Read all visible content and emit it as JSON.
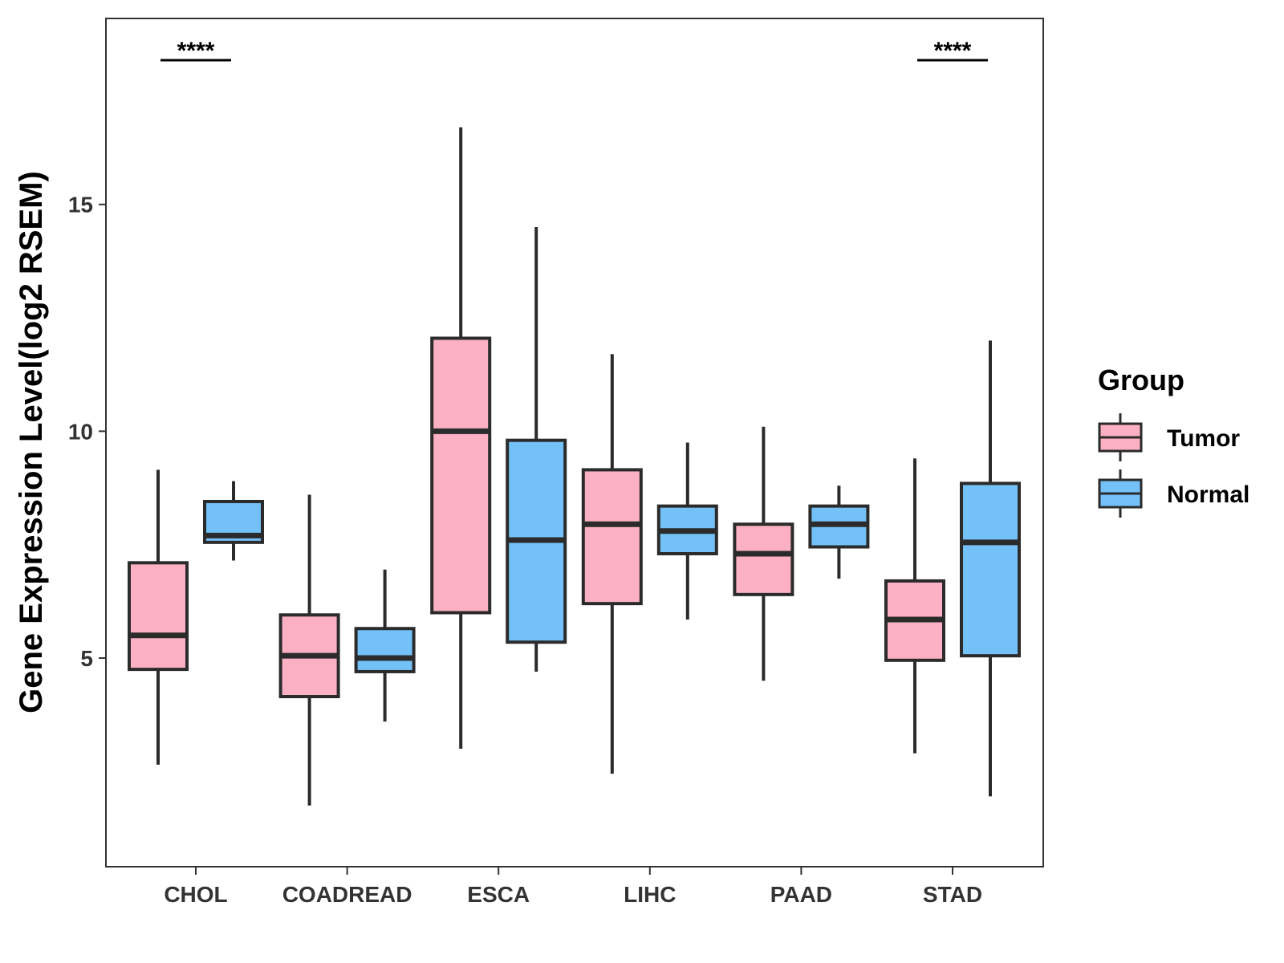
{
  "chart_data": {
    "type": "boxplot",
    "ylabel": "Gene Expression Level(log2 RSEM)",
    "xlabel": "",
    "ylim": [
      0.4,
      19.1
    ],
    "yticks": [
      5,
      10,
      15
    ],
    "ytick_labels": [
      "5",
      "10",
      "15"
    ],
    "categories": [
      "CHOL",
      "COADREAD",
      "ESCA",
      "LIHC",
      "PAAD",
      "STAD"
    ],
    "legend": {
      "title": "Group",
      "position": "right",
      "items": [
        {
          "label": "Tumor",
          "color": "#FBB1C3"
        },
        {
          "label": "Normal",
          "color": "#74C1F8"
        }
      ]
    },
    "series": [
      {
        "name": "Tumor",
        "color": "#FBB1C3",
        "boxes": [
          {
            "category": "CHOL",
            "min": 2.65,
            "q1": 4.75,
            "median": 5.5,
            "q3": 7.1,
            "max": 9.15
          },
          {
            "category": "COADREAD",
            "min": 1.75,
            "q1": 4.15,
            "median": 5.05,
            "q3": 5.95,
            "max": 8.6
          },
          {
            "category": "ESCA",
            "min": 3.0,
            "q1": 6.0,
            "median": 10.0,
            "q3": 12.05,
            "max": 16.7
          },
          {
            "category": "LIHC",
            "min": 2.45,
            "q1": 6.2,
            "median": 7.95,
            "q3": 9.15,
            "max": 11.7
          },
          {
            "category": "PAAD",
            "min": 4.5,
            "q1": 6.4,
            "median": 7.3,
            "q3": 7.95,
            "max": 10.1
          },
          {
            "category": "STAD",
            "min": 2.9,
            "q1": 4.95,
            "median": 5.85,
            "q3": 6.7,
            "max": 9.4
          }
        ]
      },
      {
        "name": "Normal",
        "color": "#74C1F8",
        "boxes": [
          {
            "category": "CHOL",
            "min": 7.15,
            "q1": 7.55,
            "median": 7.7,
            "q3": 8.45,
            "max": 8.9
          },
          {
            "category": "COADREAD",
            "min": 3.6,
            "q1": 4.7,
            "median": 5.0,
            "q3": 5.65,
            "max": 6.95
          },
          {
            "category": "ESCA",
            "min": 4.7,
            "q1": 5.35,
            "median": 7.6,
            "q3": 9.8,
            "max": 14.5
          },
          {
            "category": "LIHC",
            "min": 5.85,
            "q1": 7.3,
            "median": 7.8,
            "q3": 8.35,
            "max": 9.75
          },
          {
            "category": "PAAD",
            "min": 6.75,
            "q1": 7.45,
            "median": 7.95,
            "q3": 8.35,
            "max": 8.8
          },
          {
            "category": "STAD",
            "min": 1.95,
            "q1": 5.05,
            "median": 7.55,
            "q3": 8.85,
            "max": 12.0
          }
        ]
      }
    ],
    "significance": [
      {
        "category": "CHOL",
        "label": "****"
      },
      {
        "category": "STAD",
        "label": "****"
      }
    ]
  }
}
